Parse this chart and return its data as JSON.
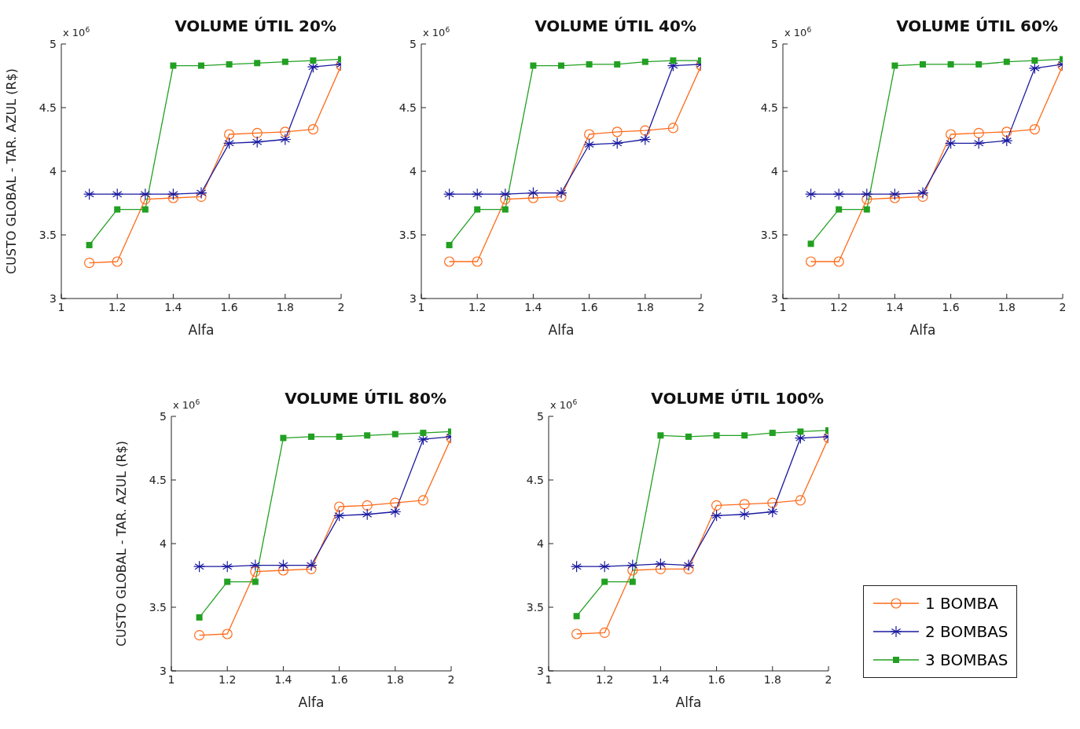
{
  "chart_data": [
    {
      "type": "line",
      "title": "VOLUME ÚTIL 20%",
      "xlabel": "Alfa",
      "ylabel": "CUSTO GLOBAL - TAR. AZUL (R$)",
      "annotations": [
        "x 10$^{6}$"
      ],
      "x": [
        1.1,
        1.2,
        1.3,
        1.4,
        1.5,
        1.6,
        1.7,
        1.8,
        1.9,
        2.0
      ],
      "xlim": [
        1,
        2
      ],
      "xticks": [
        1,
        1.2,
        1.4,
        1.6,
        1.8,
        2
      ],
      "ylim": [
        3,
        5
      ],
      "yticks": [
        3,
        3.5,
        4,
        4.5,
        5
      ],
      "grid": false,
      "legend": false,
      "series": [
        {
          "color": "#ff6b1a",
          "marker": "circle",
          "values": [
            3.28,
            3.29,
            3.78,
            3.79,
            3.8,
            4.29,
            4.3,
            4.31,
            4.33,
            4.83
          ]
        },
        {
          "color": "#1a1aa0",
          "marker": "cross",
          "values": [
            3.82,
            3.82,
            3.82,
            3.82,
            3.83,
            4.22,
            4.23,
            4.25,
            4.82,
            4.84
          ]
        },
        {
          "color": "#22a022",
          "marker": "square",
          "values": [
            3.42,
            3.7,
            3.7,
            4.83,
            4.83,
            4.84,
            4.85,
            4.86,
            4.87,
            4.88
          ]
        }
      ]
    },
    {
      "type": "line",
      "title": "VOLUME ÚTIL 40%",
      "xlabel": "Alfa",
      "annotations": [
        "x 10$^{6}$"
      ],
      "x": [
        1.1,
        1.2,
        1.3,
        1.4,
        1.5,
        1.6,
        1.7,
        1.8,
        1.9,
        2.0
      ],
      "xlim": [
        1,
        2
      ],
      "xticks": [
        1,
        1.2,
        1.4,
        1.6,
        1.8,
        2
      ],
      "ylim": [
        3,
        5
      ],
      "yticks": [
        3,
        3.5,
        4,
        4.5,
        5
      ],
      "grid": false,
      "legend": false,
      "series": [
        {
          "color": "#ff6b1a",
          "marker": "circle",
          "values": [
            3.29,
            3.29,
            3.78,
            3.79,
            3.8,
            4.29,
            4.31,
            4.32,
            4.34,
            4.83
          ]
        },
        {
          "color": "#1a1aa0",
          "marker": "cross",
          "values": [
            3.82,
            3.82,
            3.82,
            3.83,
            3.83,
            4.21,
            4.22,
            4.25,
            4.83,
            4.84
          ]
        },
        {
          "color": "#22a022",
          "marker": "square",
          "values": [
            3.42,
            3.7,
            3.7,
            4.83,
            4.83,
            4.84,
            4.84,
            4.86,
            4.87,
            4.87
          ]
        }
      ]
    },
    {
      "type": "line",
      "title": "VOLUME ÚTIL 60%",
      "xlabel": "Alfa",
      "annotations": [
        "x 10$^{6}$"
      ],
      "x": [
        1.1,
        1.2,
        1.3,
        1.4,
        1.5,
        1.6,
        1.7,
        1.8,
        1.9,
        2.0
      ],
      "xlim": [
        1,
        2
      ],
      "xticks": [
        1,
        1.2,
        1.4,
        1.6,
        1.8,
        2
      ],
      "ylim": [
        3,
        5
      ],
      "yticks": [
        3,
        3.5,
        4,
        4.5,
        5
      ],
      "grid": false,
      "legend": false,
      "series": [
        {
          "color": "#ff6b1a",
          "marker": "circle",
          "values": [
            3.29,
            3.29,
            3.78,
            3.79,
            3.8,
            4.29,
            4.3,
            4.31,
            4.33,
            4.83
          ]
        },
        {
          "color": "#1a1aa0",
          "marker": "cross",
          "values": [
            3.82,
            3.82,
            3.82,
            3.82,
            3.83,
            4.22,
            4.22,
            4.24,
            4.81,
            4.84
          ]
        },
        {
          "color": "#22a022",
          "marker": "square",
          "values": [
            3.43,
            3.7,
            3.7,
            4.83,
            4.84,
            4.84,
            4.84,
            4.86,
            4.87,
            4.88
          ]
        }
      ]
    },
    {
      "type": "line",
      "title": "VOLUME ÚTIL 80%",
      "xlabel": "Alfa",
      "ylabel": "CUSTO GLOBAL - TAR. AZUL (R$)",
      "annotations": [
        "x 10$^{6}$"
      ],
      "x": [
        1.1,
        1.2,
        1.3,
        1.4,
        1.5,
        1.6,
        1.7,
        1.8,
        1.9,
        2.0
      ],
      "xlim": [
        1,
        2
      ],
      "xticks": [
        1,
        1.2,
        1.4,
        1.6,
        1.8,
        2
      ],
      "ylim": [
        3,
        5
      ],
      "yticks": [
        3,
        3.5,
        4,
        4.5,
        5
      ],
      "grid": false,
      "legend": false,
      "series": [
        {
          "color": "#ff6b1a",
          "marker": "circle",
          "values": [
            3.28,
            3.29,
            3.78,
            3.79,
            3.8,
            4.29,
            4.3,
            4.32,
            4.34,
            4.83
          ]
        },
        {
          "color": "#1a1aa0",
          "marker": "cross",
          "values": [
            3.82,
            3.82,
            3.83,
            3.83,
            3.83,
            4.22,
            4.23,
            4.25,
            4.82,
            4.84
          ]
        },
        {
          "color": "#22a022",
          "marker": "square",
          "values": [
            3.42,
            3.7,
            3.7,
            4.83,
            4.84,
            4.84,
            4.85,
            4.86,
            4.87,
            4.88
          ]
        }
      ]
    },
    {
      "type": "line",
      "title": "VOLUME ÚTIL 100%",
      "xlabel": "Alfa",
      "annotations": [
        "x 10$^{6}$"
      ],
      "x": [
        1.1,
        1.2,
        1.3,
        1.4,
        1.5,
        1.6,
        1.7,
        1.8,
        1.9,
        2.0
      ],
      "xlim": [
        1,
        2
      ],
      "xticks": [
        1,
        1.2,
        1.4,
        1.6,
        1.8,
        2
      ],
      "ylim": [
        3,
        5
      ],
      "yticks": [
        3,
        3.5,
        4,
        4.5,
        5
      ],
      "grid": false,
      "legend": "right",
      "series": [
        {
          "name": "1 BOMBA",
          "color": "#ff6b1a",
          "marker": "circle",
          "values": [
            3.29,
            3.3,
            3.79,
            3.8,
            3.8,
            4.3,
            4.31,
            4.32,
            4.34,
            4.83
          ]
        },
        {
          "name": "2 BOMBAS",
          "color": "#1a1aa0",
          "marker": "cross",
          "values": [
            3.82,
            3.82,
            3.83,
            3.84,
            3.83,
            4.22,
            4.23,
            4.25,
            4.83,
            4.84
          ]
        },
        {
          "name": "3 BOMBAS",
          "color": "#22a022",
          "marker": "square",
          "values": [
            3.43,
            3.7,
            3.7,
            4.85,
            4.84,
            4.85,
            4.85,
            4.87,
            4.88,
            4.89
          ]
        }
      ]
    }
  ]
}
